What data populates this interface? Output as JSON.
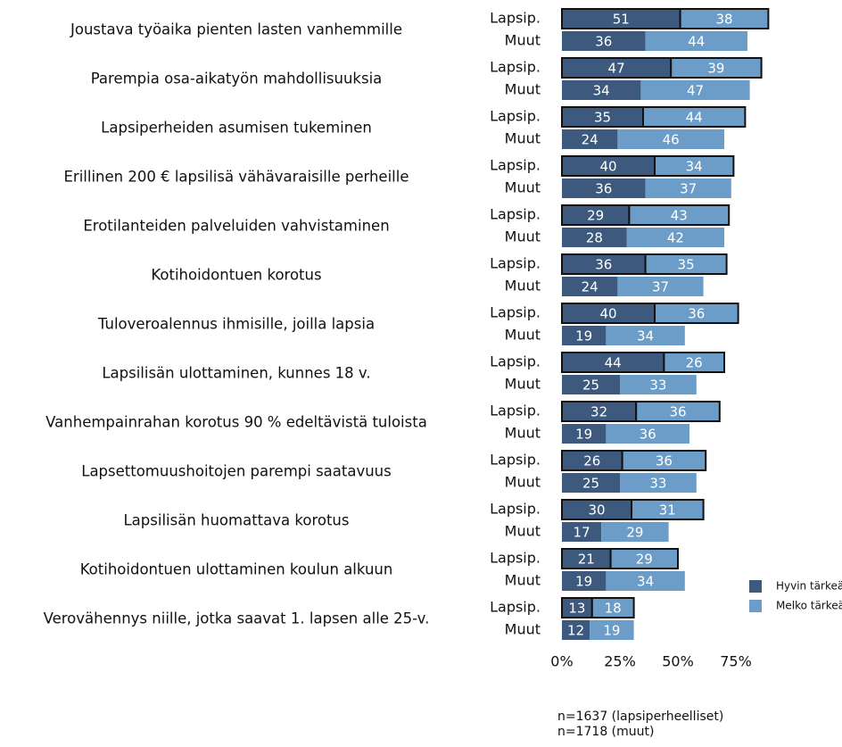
{
  "chart_data": {
    "type": "bar",
    "orientation": "horizontal",
    "stacked": true,
    "categories": [
      "Joustava työaika pienten lasten vanhemmille",
      "Parempia osa-aikatyön mahdollisuuksia",
      "Lapsiperheiden asumisen tukeminen",
      "Erillinen 200 € lapsilisä vähävaraisille perheille",
      "Erotilanteiden palveluiden vahvistaminen",
      "Kotihoidontuen korotus",
      "Tuloveroalennus ihmisille, joilla lapsia",
      "Lapsilisän ulottaminen, kunnes 18 v.",
      "Vanhempainrahan korotus 90 % edeltävistä tuloista",
      "Lapsettomuushoitojen parempi saatavuus",
      "Lapsilisän huomattava korotus",
      "Kotihoidontuen ulottaminen koulun alkuun",
      "Verovähennys niille, jotka saavat 1. lapsen alle 25-v."
    ],
    "groups": [
      "Lapsip.",
      "Muut"
    ],
    "series": [
      {
        "name": "Hyvin tärkeä",
        "color": "#3d5a7e",
        "values": [
          [
            51,
            36
          ],
          [
            47,
            34
          ],
          [
            35,
            24
          ],
          [
            40,
            36
          ],
          [
            29,
            28
          ],
          [
            36,
            24
          ],
          [
            40,
            19
          ],
          [
            44,
            25
          ],
          [
            32,
            19
          ],
          [
            26,
            25
          ],
          [
            30,
            17
          ],
          [
            21,
            19
          ],
          [
            13,
            12
          ]
        ]
      },
      {
        "name": "Melko tärkeä",
        "color": "#6b9dc8",
        "values": [
          [
            38,
            44
          ],
          [
            39,
            47
          ],
          [
            44,
            46
          ],
          [
            34,
            37
          ],
          [
            43,
            42
          ],
          [
            35,
            37
          ],
          [
            36,
            34
          ],
          [
            26,
            33
          ],
          [
            36,
            36
          ],
          [
            36,
            33
          ],
          [
            31,
            29
          ],
          [
            29,
            34
          ],
          [
            18,
            19
          ]
        ]
      }
    ],
    "xlim": [
      0,
      75
    ],
    "xticks": [
      {
        "value": 0,
        "label": "0%"
      },
      {
        "value": 25,
        "label": "25%"
      },
      {
        "value": 50,
        "label": "50%"
      },
      {
        "value": 75,
        "label": "75%"
      }
    ],
    "legend": "right",
    "notes": [
      "n=1637 (lapsiperheelliset)",
      "n=1718 (muut)"
    ]
  }
}
